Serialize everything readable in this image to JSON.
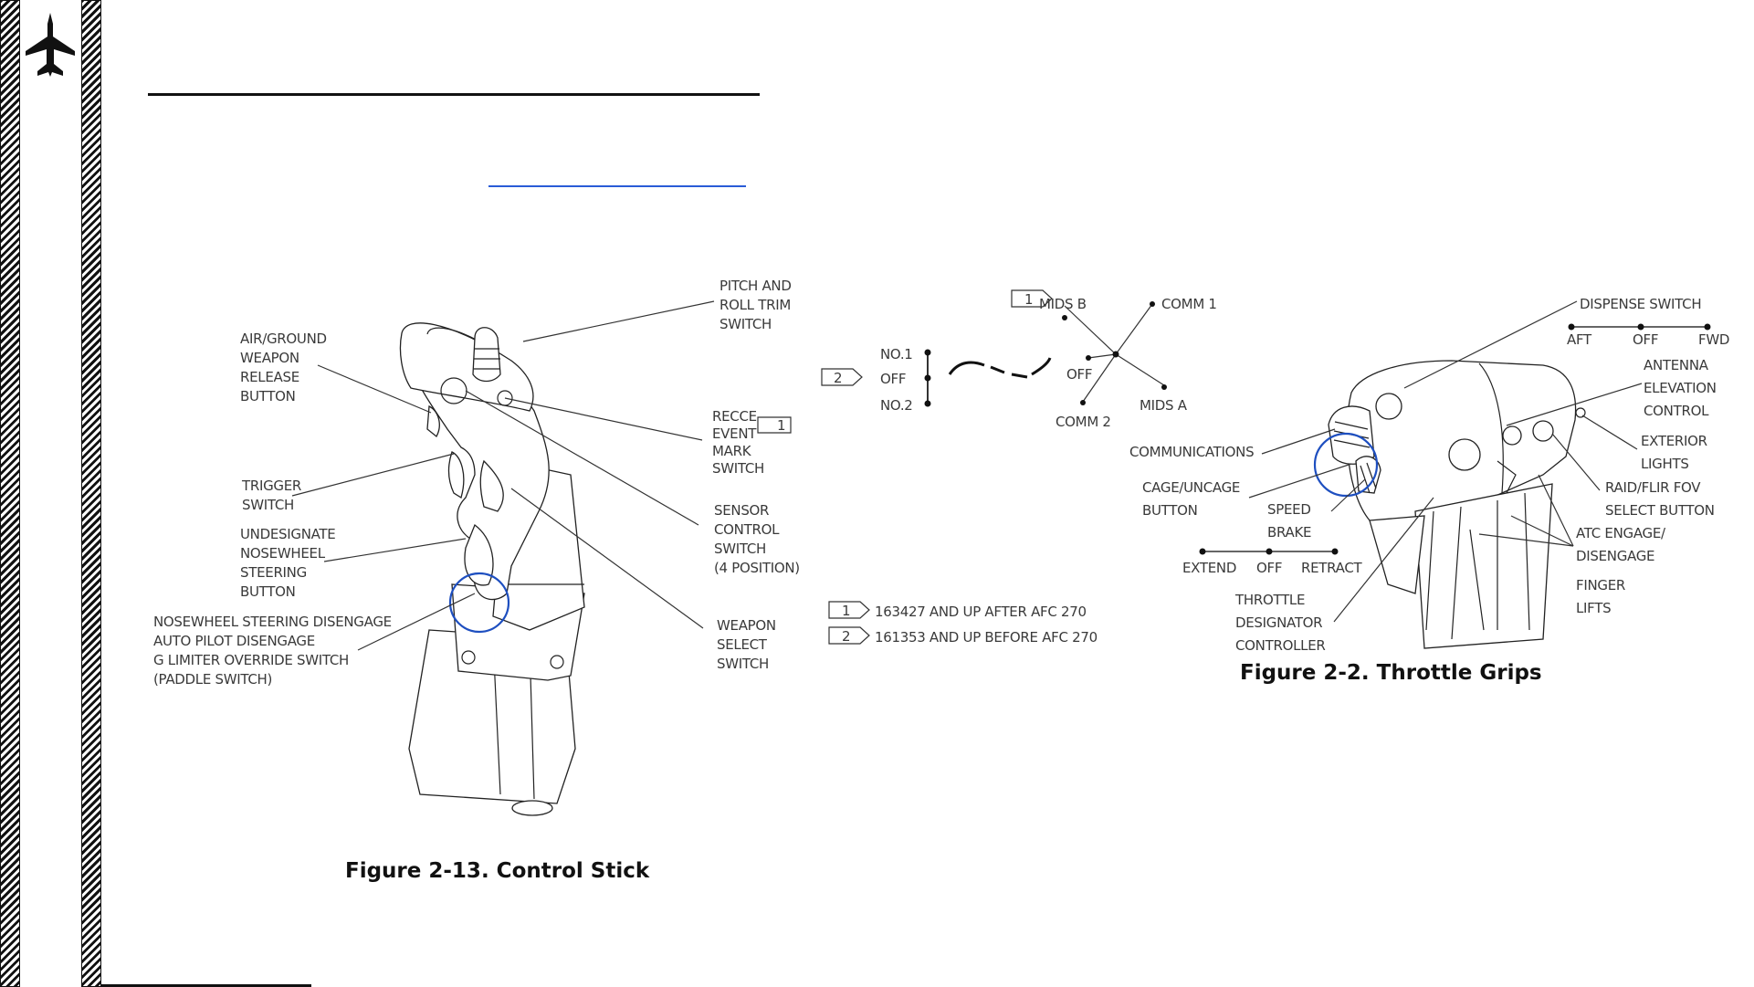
{
  "control_stick": {
    "caption": "Figure 2-13. Control Stick",
    "labels": {
      "pitch_roll_trim": [
        "PITCH AND",
        "ROLL TRIM",
        "SWITCH"
      ],
      "air_ground_release": [
        "AIR/GROUND",
        "WEAPON",
        "RELEASE",
        "BUTTON"
      ],
      "recce_event_mark": [
        "RECCE",
        "EVENT",
        "MARK",
        "SWITCH"
      ],
      "recce_note_marker": "1",
      "trigger": [
        "TRIGGER",
        "SWITCH"
      ],
      "sensor_control": [
        "SENSOR",
        "CONTROL",
        "SWITCH",
        "(4 POSITION)"
      ],
      "undesignate_nws": [
        "UNDESIGNATE",
        "NOSEWHEEL",
        "STEERING",
        "BUTTON"
      ],
      "paddle_switch": [
        "NOSEWHEEL STEERING DISENGAGE",
        "AUTO PILOT DISENGAGE",
        "G LIMITER OVERRIDE SWITCH",
        "(PADDLE SWITCH)"
      ],
      "weapon_select": [
        "WEAPON",
        "SELECT",
        "SWITCH"
      ]
    }
  },
  "comm_diagram": {
    "mids_b": "MIDS B",
    "comm1": "COMM 1",
    "off": "OFF",
    "mids_a": "MIDS A",
    "comm2": "COMM 2",
    "marker_1": "1",
    "marker_2": "2",
    "no1": "NO.1",
    "no_off": "OFF",
    "no2": "NO.2"
  },
  "notes": [
    {
      "marker": "1",
      "text": "163427 AND UP AFTER AFC 270"
    },
    {
      "marker": "2",
      "text": "161353 AND UP BEFORE AFC 270"
    }
  ],
  "throttle": {
    "caption": "Figure 2-2. Throttle Grips",
    "labels": {
      "dispense_switch": "DISPENSE SWITCH",
      "dispense_positions": [
        "AFT",
        "OFF",
        "FWD"
      ],
      "antenna_elevation": [
        "ANTENNA",
        "ELEVATION",
        "CONTROL"
      ],
      "exterior_lights": [
        "EXTERIOR",
        "LIGHTS"
      ],
      "raid_flir": [
        "RAID/FLIR FOV",
        "SELECT BUTTON"
      ],
      "atc_engage": [
        "ATC ENGAGE/",
        "DISENGAGE"
      ],
      "finger_lifts": [
        "FINGER",
        "LIFTS"
      ],
      "communications": "COMMUNICATIONS",
      "cage_uncage": [
        "CAGE/UNCAGE",
        "BUTTON"
      ],
      "speed_brake": [
        "SPEED",
        "BRAKE"
      ],
      "speed_brake_positions": [
        "EXTEND",
        "OFF",
        "RETRACT"
      ],
      "tdc": [
        "THROTTLE",
        "DESIGNATOR",
        "CONTROLLER"
      ]
    }
  }
}
